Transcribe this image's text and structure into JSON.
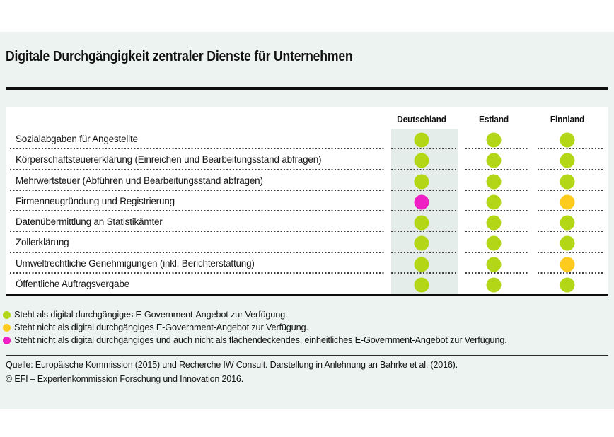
{
  "chart_data": {
    "type": "table",
    "title": "Digitale Durchgängigkeit zentraler Dienste für Unternehmen",
    "categories": [
      "Deutschland",
      "Estland",
      "Finnland"
    ],
    "rows": [
      {
        "label": "Sozialabgaben für Angestellte",
        "values": [
          "green",
          "green",
          "green"
        ]
      },
      {
        "label": "Körperschaftsteuererklärung (Einreichen und Bearbeitungsstand abfragen)",
        "values": [
          "green",
          "green",
          "green"
        ]
      },
      {
        "label": "Mehrwertsteuer (Abführen und Bearbeitungsstand abfragen)",
        "values": [
          "green",
          "green",
          "green"
        ]
      },
      {
        "label": "Firmenneugründung und Registrierung",
        "values": [
          "magenta",
          "green",
          "yellow"
        ]
      },
      {
        "label": "Datenübermittlung an Statistikämter",
        "values": [
          "green",
          "green",
          "green"
        ]
      },
      {
        "label": "Zollerklärung",
        "values": [
          "green",
          "green",
          "green"
        ]
      },
      {
        "label": "Umweltrechtliche Genehmigungen (inkl. Berichterstattung)",
        "values": [
          "green",
          "green",
          "yellow"
        ]
      },
      {
        "label": "Öffentliche Auftragsvergabe",
        "values": [
          "green",
          "green",
          "green"
        ]
      }
    ],
    "legend": [
      {
        "status": "green",
        "label": "Steht als digital durchgängiges E-Government-Angebot zur Verfügung."
      },
      {
        "status": "yellow",
        "label": "Steht nicht als digital durchgängiges E-Government-Angebot zur Verfügung."
      },
      {
        "status": "magenta",
        "label": "Steht nicht als digital durchgängiges und auch nicht als flächendeckendes, einheitliches E-Government-Angebot zur Verfügung."
      }
    ],
    "legend_position": "bottom-left",
    "highlighted_column": "Deutschland"
  },
  "source": {
    "quelle": "Quelle: Europäische Kommission (2015) und Recherche IW Consult. Darstellung in Anlehnung an Bahrke et al. (2016).",
    "copyright": "© EFI – Expertenkommission Forschung und Innovation 2016."
  },
  "colors": {
    "green": "#b3d717",
    "yellow": "#fccb1d",
    "magenta": "#ee1fc3",
    "background": "#edf3f1",
    "column_highlight": "#e4edea",
    "text": "#111111"
  }
}
